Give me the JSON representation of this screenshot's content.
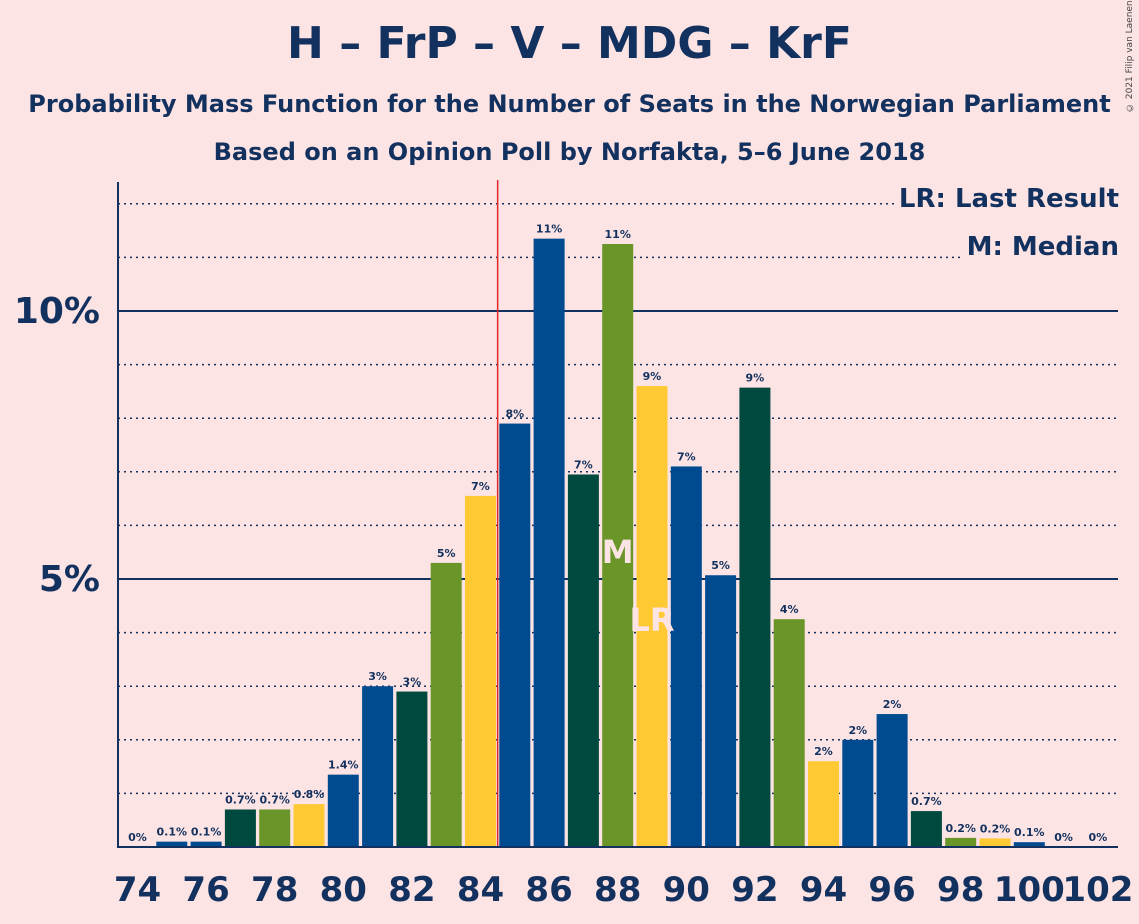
{
  "header": {
    "title": "H – FrP – V – MDG – KrF",
    "subtitle1": "Probability Mass Function for the Number of Seats in the Norwegian Parliament",
    "subtitle2": "Based on an Opinion Poll by Norfakta, 5–6 June 2018",
    "copyright": "© 2021 Filip van Laenen"
  },
  "legend": {
    "lr": "LR: Last Result",
    "m": "M: Median"
  },
  "markers": {
    "median_label": "M",
    "last_result_label": "LR",
    "median_seat": 88,
    "last_result_seat": 89,
    "majority_line_seat": 84.5
  },
  "colors": {
    "background": "#fce3e4",
    "text": "#12315e",
    "dark_green": "#00493f",
    "olive": "#6a9629",
    "yellow": "#ffc933",
    "blue": "#004b8f",
    "majority_line": "#e0272a"
  },
  "chart_data": {
    "type": "bar",
    "title": "H – FrP – V – MDG – KrF",
    "x": [
      74,
      75,
      76,
      77,
      78,
      79,
      80,
      81,
      82,
      83,
      84,
      85,
      86,
      87,
      88,
      89,
      90,
      91,
      92,
      93,
      94,
      95,
      96,
      97,
      98,
      99,
      100,
      101,
      102
    ],
    "values": [
      0,
      0.1,
      0.1,
      0.7,
      0.7,
      0.8,
      1.35,
      3.0,
      2.9,
      5.3,
      6.55,
      7.9,
      11.35,
      6.95,
      11.25,
      8.6,
      7.1,
      5.07,
      8.57,
      4.25,
      1.6,
      2.0,
      2.48,
      0.67,
      0.17,
      0.16,
      0.09,
      0,
      0
    ],
    "data_labels": [
      "0%",
      "0.1%",
      "0.1%",
      "0.7%",
      "0.7%",
      "0.8%",
      "1.4%",
      "3%",
      "3%",
      "5%",
      "7%",
      "8%",
      "11%",
      "7%",
      "11%",
      "9%",
      "7%",
      "5%",
      "9%",
      "4%",
      "2%",
      "2%",
      "2%",
      "0.7%",
      "0.2%",
      "0.2%",
      "0.1%",
      "0%",
      "0%"
    ],
    "bar_colors": [
      "dark_green",
      "blue",
      "blue",
      "dark_green",
      "olive",
      "yellow",
      "blue",
      "blue",
      "dark_green",
      "olive",
      "yellow",
      "blue",
      "blue",
      "dark_green",
      "olive",
      "yellow",
      "blue",
      "blue",
      "dark_green",
      "olive",
      "yellow",
      "blue",
      "blue",
      "dark_green",
      "olive",
      "yellow",
      "blue",
      "blue",
      "dark_green"
    ],
    "x_tick_labels": [
      "74",
      "76",
      "78",
      "80",
      "82",
      "84",
      "86",
      "88",
      "90",
      "92",
      "94",
      "96",
      "98",
      "100",
      "102"
    ],
    "y_tick_labels": [
      "5%",
      "10%"
    ],
    "y_ticks": [
      5,
      10
    ],
    "ylim": [
      0,
      12.4
    ],
    "grid": true,
    "minor_grid_step": 1
  }
}
